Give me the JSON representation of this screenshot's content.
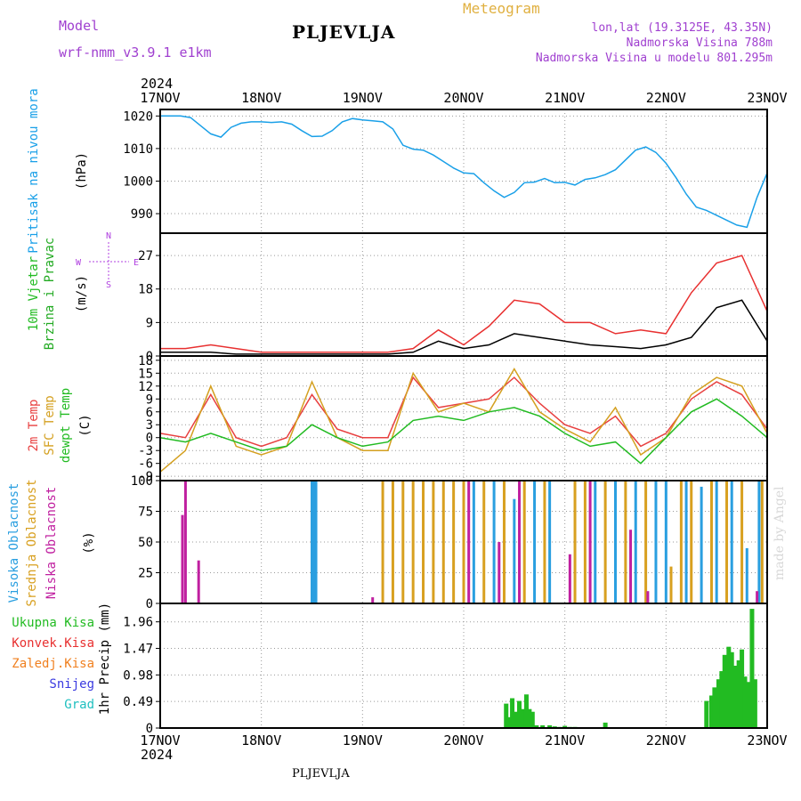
{
  "header": {
    "model_label": "Model",
    "model_name": "wrf-nmm_v3.9.1 e1km",
    "station": "PLJEVLJA",
    "product": "Meteogram",
    "coords": "lon,lat (19.3125E, 43.35N)",
    "elevation": "Nadmorska Visina 788m",
    "model_elevation": "Nadmorska Visina u modelu 801.295m",
    "footer_station": "PLJEVLJA",
    "credit": "made by Angel"
  },
  "colors": {
    "pressure": "#1aa0e8",
    "wind_label": "#22bb22",
    "wind_sub": "#22aa22",
    "wind_max": "#e83030",
    "wind_mean": "#000000",
    "t2m": "#e84040",
    "tsfc": "#d4a020",
    "dewpt": "#22bb22",
    "cloud_high": "#2a9fe0",
    "cloud_mid": "#d8a020",
    "cloud_low": "#c020a0",
    "precip_total": "#22bb22",
    "precip_conv": "#e83030",
    "precip_frozen": "#f08020",
    "precip_snow": "#3a3ae0",
    "precip_grad": "#20c0c0",
    "header_purple": "#a040d0",
    "header_gold": "#e0b040"
  },
  "chart_data": {
    "type": "line",
    "x_axis": {
      "year": "2024",
      "tick_labels": [
        "17NOV",
        "18NOV",
        "19NOV",
        "20NOV",
        "21NOV",
        "22NOV",
        "23NOV"
      ],
      "range_days": [
        0,
        6
      ]
    },
    "panels": [
      {
        "id": "pressure",
        "type": "line",
        "ylabel": [
          "Pritisak na nivou mora",
          "(hPa)"
        ],
        "ylim": [
          984,
          1022
        ],
        "yticks": [
          "990",
          "1000",
          "1010",
          "1020"
        ],
        "ytick_values": [
          990,
          1000,
          1010,
          1020
        ],
        "series": [
          {
            "x": [
              0,
              0.1,
              0.2,
              0.3,
              0.4,
              0.5,
              0.6,
              0.7,
              0.8,
              0.9,
              1.0,
              1.1,
              1.2,
              1.3,
              1.4,
              1.5,
              1.6,
              1.7,
              1.8,
              1.9,
              2.0,
              2.1,
              2.2,
              2.3,
              2.4,
              2.5,
              2.6,
              2.7,
              2.8,
              2.9,
              3.0,
              3.1,
              3.2,
              3.3,
              3.4,
              3.5,
              3.6,
              3.7,
              3.8,
              3.9,
              4.0,
              4.1,
              4.2,
              4.3,
              4.4,
              4.5,
              4.6,
              4.7,
              4.8,
              4.9,
              5.0,
              5.1,
              5.2,
              5.3,
              5.4,
              5.5,
              5.6,
              5.7,
              5.8,
              5.9,
              6.0
            ],
            "y": [
              1020,
              1020,
              1020,
              1019.5,
              1017,
              1014.5,
              1013.5,
              1016.5,
              1017.8,
              1018.2,
              1018.2,
              1018,
              1018.2,
              1017.5,
              1015.5,
              1013.7,
              1013.8,
              1015.5,
              1018.2,
              1019.2,
              1018.8,
              1018.5,
              1018.2,
              1016,
              1011,
              1009.8,
              1009.5,
              1008,
              1006,
              1004,
              1002.5,
              1002.3,
              999.5,
              997,
              995,
              996.5,
              999.5,
              999.7,
              1000.8,
              999.5,
              999.6,
              998.8,
              1000.5,
              1001,
              1002,
              1003.5,
              1006.5,
              1009.5,
              1010.5,
              1008.8,
              1005.5,
              1001,
              996,
              992,
              991,
              989.5,
              988,
              986.5,
              985.8,
              995,
              1002.5
            ]
          }
        ]
      },
      {
        "id": "wind",
        "type": "line",
        "ylabel": [
          "10m Vjetar",
          "Brzina i Pravac",
          "(m/s)"
        ],
        "rose_labels": [
          "N",
          "E",
          "S",
          "W"
        ],
        "ylim": [
          0,
          33
        ],
        "yticks": [
          "0",
          "9",
          "18",
          "27"
        ],
        "ytick_values": [
          0,
          9,
          18,
          27
        ],
        "series": [
          {
            "name": "mean",
            "x": [
              0,
              0.25,
              0.5,
              0.75,
              1.0,
              1.25,
              1.5,
              1.75,
              2.0,
              2.25,
              2.5,
              2.75,
              3.0,
              3.25,
              3.5,
              3.75,
              4.0,
              4.25,
              4.5,
              4.75,
              5.0,
              5.25,
              5.5,
              5.75,
              6.0
            ],
            "y": [
              1,
              1,
              1,
              0.5,
              0.5,
              0.5,
              0.5,
              0.5,
              0.5,
              0.5,
              1,
              4,
              2,
              3,
              6,
              5,
              4,
              3,
              2.5,
              2,
              3,
              5,
              13,
              15,
              4
            ]
          },
          {
            "name": "gust",
            "x": [
              0,
              0.25,
              0.5,
              0.75,
              1.0,
              1.25,
              1.5,
              1.75,
              2.0,
              2.25,
              2.5,
              2.75,
              3.0,
              3.25,
              3.5,
              3.75,
              4.0,
              4.25,
              4.5,
              4.75,
              5.0,
              5.25,
              5.5,
              5.75,
              6.0
            ],
            "y": [
              2,
              2,
              3,
              2,
              1,
              1,
              1,
              1,
              1,
              1,
              2,
              7,
              3,
              8,
              15,
              14,
              9,
              9,
              6,
              7,
              6,
              17,
              25,
              27,
              12
            ]
          }
        ]
      },
      {
        "id": "temperature",
        "type": "line",
        "ylabel": [
          "2m Temp",
          "SFC Temp",
          "dewpt Temp",
          "(C)"
        ],
        "ylim": [
          -10,
          19
        ],
        "yticks": [
          "-9",
          "-6",
          "-3",
          "0",
          "3",
          "6",
          "9",
          "12",
          "15",
          "18"
        ],
        "ytick_values": [
          -9,
          -6,
          -3,
          0,
          3,
          6,
          9,
          12,
          15,
          18
        ],
        "series": [
          {
            "name": "t2m",
            "x": [
              0,
              0.25,
              0.5,
              0.75,
              1.0,
              1.25,
              1.5,
              1.75,
              2.0,
              2.25,
              2.5,
              2.75,
              3.0,
              3.25,
              3.5,
              3.75,
              4.0,
              4.25,
              4.5,
              4.75,
              5.0,
              5.25,
              5.5,
              5.75,
              6.0
            ],
            "y": [
              1,
              0,
              10,
              0,
              -2,
              0,
              10,
              2,
              0,
              0,
              14,
              7,
              8,
              9,
              14,
              8,
              3,
              1,
              5,
              -2,
              1,
              9,
              13,
              10,
              2
            ]
          },
          {
            "name": "tsfc",
            "x": [
              0,
              0.25,
              0.5,
              0.75,
              1.0,
              1.25,
              1.5,
              1.75,
              2.0,
              2.25,
              2.5,
              2.75,
              3.0,
              3.25,
              3.5,
              3.75,
              4.0,
              4.25,
              4.5,
              4.75,
              5.0,
              5.25,
              5.5,
              5.75,
              6.0
            ],
            "y": [
              -8,
              -3,
              12,
              -2,
              -4,
              -2,
              13,
              0,
              -3,
              -3,
              15,
              6,
              8,
              6,
              16,
              6,
              2,
              -1,
              7,
              -4,
              0,
              10,
              14,
              12,
              1
            ]
          },
          {
            "name": "dewpt",
            "x": [
              0,
              0.25,
              0.5,
              0.75,
              1.0,
              1.25,
              1.5,
              1.75,
              2.0,
              2.25,
              2.5,
              2.75,
              3.0,
              3.25,
              3.5,
              3.75,
              4.0,
              4.25,
              4.5,
              4.75,
              5.0,
              5.25,
              5.5,
              5.75,
              6.0
            ],
            "y": [
              0,
              -1,
              1,
              -1,
              -3,
              -2,
              3,
              0,
              -2,
              -1,
              4,
              5,
              4,
              6,
              7,
              5,
              1,
              -2,
              -1,
              -6,
              0,
              6,
              9,
              5,
              0
            ]
          }
        ]
      },
      {
        "id": "cloud",
        "type": "bar",
        "ylabel": [
          "Visoka Oblacnost",
          "Srednja Oblacnost",
          "Niska Oblacnost",
          "(%)"
        ],
        "ylim": [
          0,
          100
        ],
        "yticks": [
          "0",
          "25",
          "50",
          "75",
          "100"
        ],
        "ytick_values": [
          0,
          25,
          50,
          75,
          100
        ],
        "series": [
          {
            "name": "high",
            "x": [
              1.5,
              1.52,
              1.54,
              3.1,
              3.3,
              3.5,
              3.7,
              3.85,
              4.3,
              4.5,
              4.7,
              4.9,
              5.0,
              5.2,
              5.35,
              5.5,
              5.65,
              5.8,
              5.92
            ],
            "y": [
              100,
              100,
              100,
              100,
              100,
              85,
              100,
              100,
              100,
              100,
              100,
              100,
              100,
              100,
              95,
              100,
              100,
              45,
              100
            ]
          },
          {
            "name": "mid",
            "x": [
              2.2,
              2.3,
              2.4,
              2.5,
              2.6,
              2.7,
              2.8,
              2.9,
              3.0,
              3.2,
              3.4,
              3.6,
              3.8,
              4.1,
              4.2,
              4.4,
              4.6,
              4.8,
              5.05,
              5.15,
              5.25,
              5.45,
              5.6,
              5.75,
              5.95
            ],
            "y": [
              100,
              100,
              100,
              100,
              100,
              100,
              100,
              100,
              100,
              100,
              100,
              100,
              100,
              100,
              100,
              100,
              100,
              100,
              30,
              100,
              100,
              100,
              100,
              100,
              100
            ]
          },
          {
            "name": "low",
            "x": [
              0.22,
              0.25,
              0.38,
              2.1,
              3.05,
              3.35,
              3.55,
              4.05,
              4.25,
              4.65,
              4.82,
              5.9
            ],
            "y": [
              72,
              100,
              35,
              5,
              100,
              50,
              100,
              40,
              100,
              60,
              10,
              10
            ]
          }
        ]
      },
      {
        "id": "precip",
        "type": "bar",
        "ylabel": [
          "1hr Precip (mm)"
        ],
        "legend": [
          "Ukupna Kisa",
          "Konvek.Kisa",
          "Zaledj.Kisa",
          "Snijeg",
          "Grad"
        ],
        "ylim": [
          0,
          2.3
        ],
        "yticks": [
          "0",
          "0.49",
          "0.98",
          "1.47",
          "1.96"
        ],
        "ytick_values": [
          0,
          0.49,
          0.98,
          1.47,
          1.96
        ],
        "series": [
          {
            "name": "Ukupna Kisa",
            "x": [
              3.42,
              3.45,
              3.48,
              3.52,
              3.55,
              3.58,
              3.62,
              3.65,
              3.68,
              3.72,
              3.78,
              3.85,
              3.9,
              3.95,
              4.0,
              4.05,
              4.1,
              4.4,
              5.4,
              5.45,
              5.48,
              5.52,
              5.55,
              5.58,
              5.62,
              5.65,
              5.68,
              5.72,
              5.75,
              5.78,
              5.82,
              5.85,
              5.88
            ],
            "y": [
              0.45,
              0.2,
              0.55,
              0.3,
              0.5,
              0.35,
              0.62,
              0.35,
              0.3,
              0.05,
              0.05,
              0.05,
              0.03,
              0.02,
              0.04,
              0.02,
              0.02,
              0.1,
              0.5,
              0.6,
              0.75,
              0.9,
              1.05,
              1.35,
              1.5,
              1.4,
              1.15,
              1.25,
              1.45,
              0.95,
              0.85,
              2.2,
              0.9
            ]
          }
        ]
      }
    ]
  }
}
